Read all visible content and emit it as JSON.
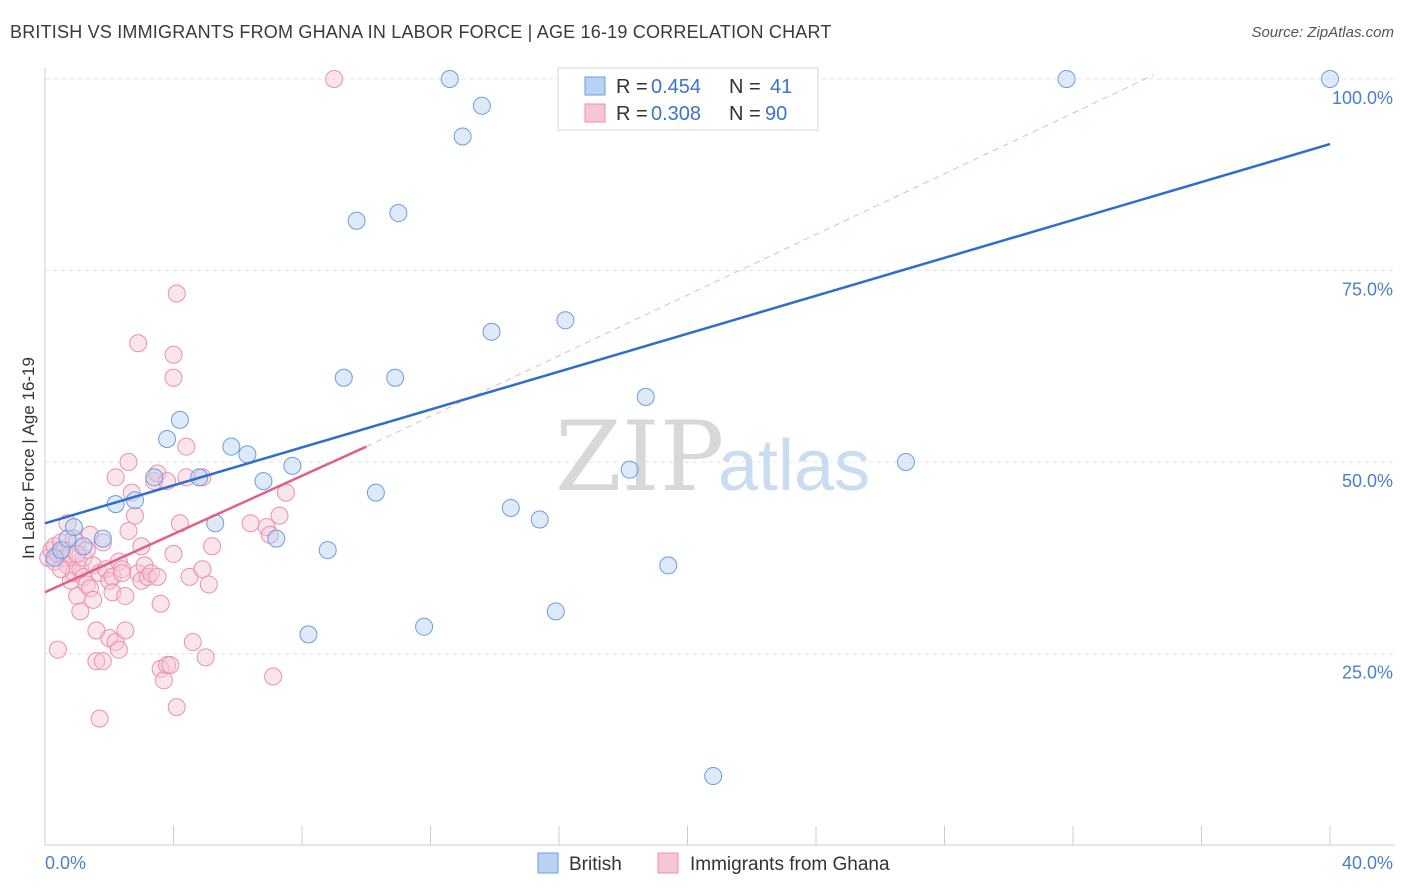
{
  "title": "BRITISH VS IMMIGRANTS FROM GHANA IN LABOR FORCE | AGE 16-19 CORRELATION CHART",
  "source": "Source: ZipAtlas.com",
  "watermark": {
    "zip": "ZIP",
    "atlas": "atlas"
  },
  "colors": {
    "british": "#6a9ee0",
    "british_fill": "#b9d1f2",
    "ghana": "#ec8fae",
    "ghana_fill": "#f6c6d6",
    "british_line": "#2f6ec9",
    "ghana_line": "#e0608c"
  },
  "legend": {
    "rows": [
      {
        "r_label": "R =",
        "r_value": "0.454",
        "n_label": "N =",
        "n_value": "41"
      },
      {
        "r_label": "R =",
        "r_value": "0.308",
        "n_label": "N =",
        "n_value": "90"
      }
    ]
  },
  "bottom_legend": [
    "British",
    "Immigrants from Ghana"
  ],
  "chart_data": {
    "type": "scatter",
    "title": "BRITISH VS IMMIGRANTS FROM GHANA IN LABOR FORCE | AGE 16-19 CORRELATION CHART",
    "xlabel": "",
    "ylabel": "In Labor Force | Age 16-19",
    "xlim": [
      0,
      40
    ],
    "ylim": [
      0,
      102
    ],
    "x_tick_labels": [
      "0.0%",
      "40.0%"
    ],
    "y_ticks": [
      25,
      50,
      75,
      100
    ],
    "y_tick_labels": [
      "25.0%",
      "50.0%",
      "75.0%",
      "100.0%"
    ],
    "series": [
      {
        "name": "British",
        "r": 0.454,
        "n": 41,
        "trend": {
          "x0": 0,
          "y0": 42.0,
          "x1": 40,
          "y1": 91.5
        },
        "points": [
          [
            0.3,
            37.5
          ],
          [
            0.5,
            38.5
          ],
          [
            0.7,
            40.0
          ],
          [
            0.9,
            41.5
          ],
          [
            1.2,
            39.0
          ],
          [
            1.8,
            40.0
          ],
          [
            2.2,
            44.5
          ],
          [
            2.8,
            45.0
          ],
          [
            3.4,
            48.0
          ],
          [
            3.8,
            53.0
          ],
          [
            4.2,
            55.5
          ],
          [
            4.8,
            48.0
          ],
          [
            5.3,
            42.0
          ],
          [
            5.8,
            52.0
          ],
          [
            6.3,
            51.0
          ],
          [
            6.8,
            47.5
          ],
          [
            7.2,
            40.0
          ],
          [
            7.7,
            49.5
          ],
          [
            8.2,
            27.5
          ],
          [
            8.8,
            38.5
          ],
          [
            9.3,
            61.0
          ],
          [
            9.7,
            81.5
          ],
          [
            10.3,
            46.0
          ],
          [
            10.9,
            61.0
          ],
          [
            11.0,
            82.5
          ],
          [
            11.8,
            28.5
          ],
          [
            12.6,
            100.0
          ],
          [
            13.0,
            92.5
          ],
          [
            13.6,
            96.5
          ],
          [
            13.9,
            67.0
          ],
          [
            14.5,
            44.0
          ],
          [
            15.4,
            42.5
          ],
          [
            15.9,
            30.5
          ],
          [
            16.2,
            68.5
          ],
          [
            18.2,
            49.0
          ],
          [
            18.7,
            58.5
          ],
          [
            19.4,
            36.5
          ],
          [
            20.8,
            9.0
          ],
          [
            26.8,
            50.0
          ],
          [
            31.8,
            100.0
          ],
          [
            40.0,
            100.0
          ]
        ]
      },
      {
        "name": "Immigrants from Ghana",
        "r": 0.308,
        "n": 90,
        "trend": {
          "x0": 0,
          "y0": 33.0,
          "x1": 10.0,
          "y1": 52.0
        },
        "dashed_extension": {
          "x0": 10.0,
          "y0": 52.0,
          "x1": 34.5,
          "y1": 100.5
        },
        "points": [
          [
            0.1,
            37.5
          ],
          [
            0.2,
            38.5
          ],
          [
            0.3,
            37.0
          ],
          [
            0.3,
            39.0
          ],
          [
            0.4,
            38.0
          ],
          [
            0.4,
            25.5
          ],
          [
            0.5,
            39.5
          ],
          [
            0.6,
            37.5
          ],
          [
            0.6,
            38.5
          ],
          [
            0.7,
            36.5
          ],
          [
            0.7,
            42.0
          ],
          [
            0.8,
            38.0
          ],
          [
            0.8,
            34.5
          ],
          [
            0.9,
            40.0
          ],
          [
            0.9,
            35.5
          ],
          [
            1.0,
            32.5
          ],
          [
            1.0,
            39.5
          ],
          [
            1.1,
            30.5
          ],
          [
            1.1,
            36.0
          ],
          [
            1.2,
            37.5
          ],
          [
            1.2,
            35.0
          ],
          [
            1.3,
            38.5
          ],
          [
            1.3,
            34.0
          ],
          [
            1.4,
            33.5
          ],
          [
            1.4,
            40.5
          ],
          [
            1.5,
            32.0
          ],
          [
            1.5,
            36.5
          ],
          [
            1.6,
            28.0
          ],
          [
            1.6,
            24.0
          ],
          [
            1.7,
            35.5
          ],
          [
            1.7,
            16.5
          ],
          [
            1.8,
            39.5
          ],
          [
            1.8,
            24.0
          ],
          [
            1.9,
            36.0
          ],
          [
            2.0,
            27.0
          ],
          [
            2.0,
            34.5
          ],
          [
            2.1,
            35.0
          ],
          [
            2.1,
            33.0
          ],
          [
            2.2,
            48.0
          ],
          [
            2.2,
            26.5
          ],
          [
            2.3,
            37.0
          ],
          [
            2.3,
            25.5
          ],
          [
            2.4,
            36.0
          ],
          [
            2.5,
            28.0
          ],
          [
            2.5,
            32.5
          ],
          [
            2.6,
            41.0
          ],
          [
            2.6,
            50.0
          ],
          [
            2.7,
            46.0
          ],
          [
            2.8,
            43.0
          ],
          [
            2.9,
            65.5
          ],
          [
            2.9,
            35.5
          ],
          [
            3.0,
            39.0
          ],
          [
            3.0,
            34.5
          ],
          [
            3.1,
            36.5
          ],
          [
            3.2,
            35.0
          ],
          [
            3.3,
            35.5
          ],
          [
            3.4,
            47.5
          ],
          [
            3.5,
            48.5
          ],
          [
            3.5,
            35.0
          ],
          [
            3.6,
            23.0
          ],
          [
            3.6,
            31.5
          ],
          [
            3.7,
            21.5
          ],
          [
            3.8,
            47.5
          ],
          [
            3.8,
            23.5
          ],
          [
            3.9,
            23.5
          ],
          [
            4.0,
            38.0
          ],
          [
            4.0,
            61.0
          ],
          [
            4.0,
            64.0
          ],
          [
            4.1,
            18.0
          ],
          [
            4.1,
            72.0
          ],
          [
            4.2,
            42.0
          ],
          [
            4.4,
            52.0
          ],
          [
            4.4,
            48.0
          ],
          [
            4.5,
            35.0
          ],
          [
            4.6,
            26.5
          ],
          [
            4.9,
            48.0
          ],
          [
            4.9,
            36.0
          ],
          [
            5.0,
            24.5
          ],
          [
            5.1,
            34.0
          ],
          [
            5.2,
            39.0
          ],
          [
            6.4,
            42.0
          ],
          [
            6.9,
            41.5
          ],
          [
            7.0,
            40.5
          ],
          [
            7.1,
            22.0
          ],
          [
            7.3,
            43.0
          ],
          [
            7.5,
            46.0
          ],
          [
            9.0,
            100.0
          ],
          [
            1.0,
            38.0
          ],
          [
            0.5,
            36.0
          ],
          [
            2.4,
            35.5
          ]
        ]
      }
    ]
  }
}
